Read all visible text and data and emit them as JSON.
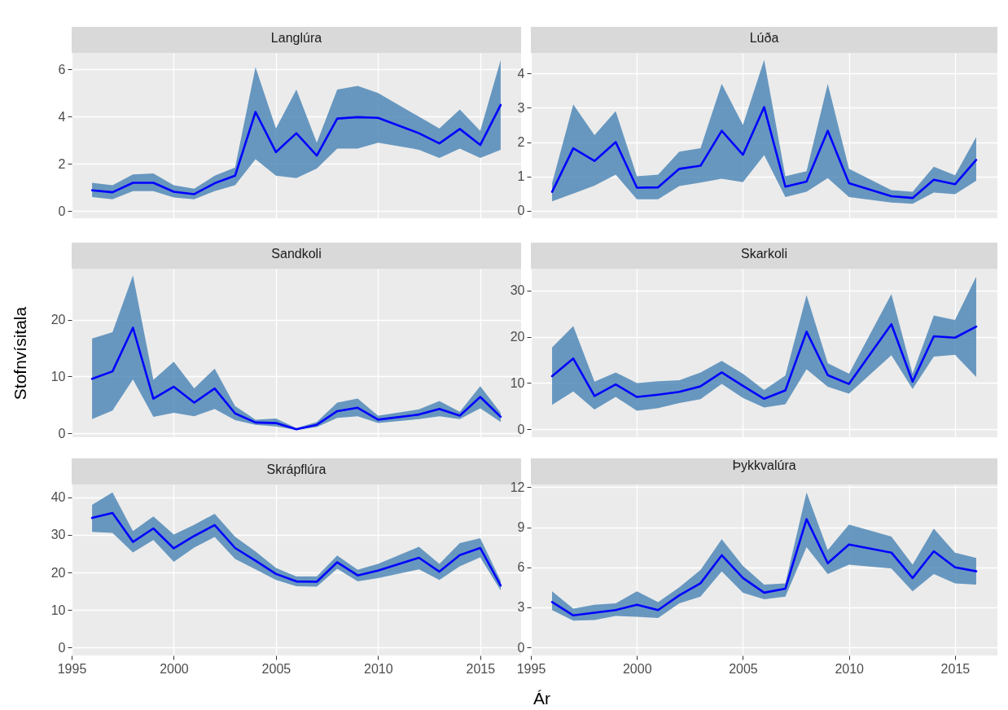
{
  "chart_data": [
    {
      "type": "line",
      "title": "Langlúra",
      "x": [
        1996,
        1997,
        1998,
        1999,
        2000,
        2001,
        2002,
        2003,
        2004,
        2005,
        2006,
        2007,
        2008,
        2009,
        2010,
        2012,
        2013,
        2014,
        2015,
        2016
      ],
      "xlim": [
        1995,
        2017
      ],
      "xticks": [
        1995,
        2000,
        2005,
        2010,
        2015
      ],
      "ylim": [
        -0.3,
        6.7
      ],
      "yticks": [
        0,
        2,
        4,
        6
      ],
      "grid": true,
      "tick_labels": "y",
      "series": [
        {
          "color": "#0000ff",
          "values": [
            0.88,
            0.8,
            1.2,
            1.2,
            0.82,
            0.72,
            1.18,
            1.5,
            4.2,
            2.5,
            3.3,
            2.35,
            3.92,
            3.98,
            3.95,
            3.3,
            2.87,
            3.48,
            2.8,
            4.5
          ],
          "lower": [
            0.6,
            0.5,
            0.85,
            0.85,
            0.58,
            0.5,
            0.85,
            1.1,
            2.2,
            1.5,
            1.4,
            1.8,
            2.65,
            2.65,
            2.9,
            2.6,
            2.25,
            2.65,
            2.25,
            2.6
          ],
          "upper": [
            1.2,
            1.1,
            1.55,
            1.6,
            1.1,
            0.95,
            1.5,
            1.85,
            6.1,
            3.5,
            5.15,
            2.9,
            5.15,
            5.3,
            5.0,
            4.0,
            3.5,
            4.3,
            3.4,
            6.4
          ]
        }
      ]
    },
    {
      "type": "line",
      "title": "Lúða",
      "x": [
        1996,
        1997,
        1998,
        1999,
        2000,
        2001,
        2002,
        2003,
        2004,
        2005,
        2006,
        2007,
        2008,
        2009,
        2010,
        2012,
        2013,
        2014,
        2015,
        2016
      ],
      "xlim": [
        1995,
        2017
      ],
      "xticks": [
        1995,
        2000,
        2005,
        2010,
        2015
      ],
      "ylim": [
        -0.22,
        4.6
      ],
      "yticks": [
        0,
        1,
        2,
        3,
        4
      ],
      "grid": true,
      "tick_labels": "y",
      "series": [
        {
          "color": "#0000ff",
          "values": [
            0.55,
            1.82,
            1.45,
            2.0,
            0.67,
            0.68,
            1.22,
            1.31,
            2.33,
            1.63,
            3.02,
            0.7,
            0.85,
            2.33,
            0.8,
            0.42,
            0.37,
            0.9,
            0.77,
            1.48
          ],
          "lower": [
            0.27,
            0.5,
            0.73,
            1.05,
            0.33,
            0.33,
            0.72,
            0.82,
            0.93,
            0.83,
            1.62,
            0.4,
            0.55,
            0.95,
            0.4,
            0.24,
            0.2,
            0.53,
            0.48,
            0.87
          ],
          "upper": [
            0.8,
            3.1,
            2.2,
            2.9,
            1.0,
            1.05,
            1.72,
            1.82,
            3.7,
            2.5,
            4.4,
            1.0,
            1.15,
            3.7,
            1.22,
            0.6,
            0.55,
            1.28,
            1.03,
            2.15
          ]
        }
      ]
    },
    {
      "type": "line",
      "title": "Sandkoli",
      "ylabel": "Stofnvísitala",
      "x": [
        1996,
        1997,
        1998,
        1999,
        2000,
        2001,
        2002,
        2003,
        2004,
        2005,
        2006,
        2007,
        2008,
        2009,
        2010,
        2012,
        2013,
        2014,
        2015,
        2016
      ],
      "xlim": [
        1995,
        2017
      ],
      "xticks": [
        1995,
        2000,
        2005,
        2010,
        2015
      ],
      "ylim": [
        -0.7,
        29
      ],
      "yticks": [
        0,
        10,
        20
      ],
      "grid": true,
      "tick_labels": "y",
      "series": [
        {
          "color": "#0000ff",
          "values": [
            9.6,
            10.9,
            18.6,
            6.1,
            8.2,
            5.4,
            7.9,
            3.5,
            1.9,
            1.8,
            0.7,
            1.5,
            3.9,
            4.5,
            2.4,
            3.3,
            4.3,
            3.1,
            6.4,
            2.9
          ],
          "lower": [
            2.5,
            4.0,
            9.5,
            2.9,
            3.6,
            3.0,
            4.3,
            2.3,
            1.5,
            1.2,
            0.6,
            1.1,
            2.7,
            3.0,
            1.8,
            2.5,
            3.0,
            2.5,
            4.4,
            2.0
          ],
          "upper": [
            16.7,
            17.8,
            27.8,
            9.4,
            12.6,
            7.9,
            11.4,
            4.8,
            2.4,
            2.6,
            0.9,
            2.0,
            5.4,
            6.1,
            3.1,
            4.2,
            5.7,
            3.8,
            8.3,
            3.6
          ]
        }
      ]
    },
    {
      "type": "line",
      "title": "Skarkoli",
      "x": [
        1996,
        1997,
        1998,
        1999,
        2000,
        2001,
        2002,
        2003,
        2004,
        2005,
        2006,
        2007,
        2008,
        2009,
        2010,
        2012,
        2013,
        2014,
        2015,
        2016
      ],
      "xlim": [
        1995,
        2017
      ],
      "xticks": [
        1995,
        2000,
        2005,
        2010,
        2015
      ],
      "ylim": [
        -1.7,
        34.7
      ],
      "yticks": [
        0,
        10,
        20,
        30
      ],
      "grid": true,
      "tick_labels": "y",
      "series": [
        {
          "color": "#0000ff",
          "values": [
            11.5,
            15.3,
            7.2,
            9.7,
            7.0,
            7.5,
            8.1,
            9.3,
            12.3,
            9.4,
            6.6,
            8.4,
            21.1,
            11.7,
            9.8,
            22.7,
            10.3,
            20.1,
            19.8,
            22.2
          ],
          "lower": [
            5.3,
            8.2,
            4.3,
            7.0,
            4.0,
            4.6,
            5.7,
            6.5,
            9.8,
            6.8,
            4.7,
            5.4,
            13.0,
            9.2,
            7.7,
            16.0,
            8.7,
            15.7,
            16.1,
            11.3
          ],
          "upper": [
            17.7,
            22.3,
            10.3,
            12.3,
            10.0,
            10.4,
            10.6,
            12.3,
            14.8,
            12.0,
            8.5,
            11.6,
            29.0,
            14.3,
            12.0,
            29.2,
            12.0,
            24.6,
            23.6,
            33.0
          ]
        }
      ]
    },
    {
      "type": "line",
      "title": "Skrápflúra",
      "xlabel": "Ár",
      "x": [
        1996,
        1997,
        1998,
        1999,
        2000,
        2001,
        2002,
        2003,
        2004,
        2005,
        2006,
        2007,
        2008,
        2009,
        2010,
        2012,
        2013,
        2014,
        2015,
        2016
      ],
      "xlim": [
        1995,
        2017
      ],
      "xticks": [
        1995,
        2000,
        2005,
        2010,
        2015
      ],
      "ylim": [
        -2.1,
        43.4
      ],
      "yticks": [
        0,
        10,
        20,
        30,
        40
      ],
      "grid": true,
      "series": [
        {
          "color": "#0000ff",
          "values": [
            34.5,
            35.8,
            28.1,
            31.7,
            26.4,
            29.7,
            32.6,
            26.5,
            23.1,
            19.6,
            17.6,
            17.5,
            22.7,
            19.2,
            20.5,
            23.9,
            20.2,
            24.6,
            26.5,
            16.5
          ],
          "lower": [
            30.8,
            30.5,
            25.3,
            28.6,
            22.8,
            26.6,
            29.4,
            23.6,
            20.8,
            18.0,
            16.3,
            16.2,
            21.0,
            17.6,
            18.5,
            20.8,
            18.0,
            21.6,
            24.0,
            15.2
          ],
          "upper": [
            38.0,
            41.3,
            31.0,
            34.9,
            30.1,
            32.7,
            35.6,
            29.5,
            25.6,
            21.2,
            18.9,
            18.9,
            24.5,
            20.7,
            22.3,
            26.8,
            22.3,
            27.8,
            29.1,
            17.8
          ]
        }
      ]
    },
    {
      "type": "line",
      "title": "Þykkvalúra",
      "x": [
        1996,
        1997,
        1998,
        1999,
        2000,
        2001,
        2002,
        2003,
        2004,
        2005,
        2006,
        2007,
        2008,
        2009,
        2010,
        2012,
        2013,
        2014,
        2015,
        2016
      ],
      "xlim": [
        1995,
        2017
      ],
      "xticks": [
        1995,
        2000,
        2005,
        2010,
        2015
      ],
      "ylim": [
        -0.6,
        12.2
      ],
      "yticks": [
        0,
        3,
        6,
        9,
        12
      ],
      "grid": true,
      "series": [
        {
          "color": "#0000ff",
          "values": [
            3.4,
            2.4,
            2.6,
            2.8,
            3.2,
            2.8,
            3.9,
            4.8,
            6.9,
            5.2,
            4.1,
            4.4,
            9.6,
            6.3,
            7.7,
            7.1,
            5.2,
            7.2,
            6.0,
            5.7
          ],
          "lower": [
            2.8,
            2.0,
            2.05,
            2.35,
            2.3,
            2.2,
            3.3,
            3.8,
            5.7,
            4.1,
            3.6,
            3.8,
            7.5,
            5.5,
            6.2,
            5.9,
            4.2,
            5.5,
            4.8,
            4.7
          ],
          "upper": [
            4.2,
            2.9,
            3.2,
            3.3,
            4.2,
            3.4,
            4.5,
            5.8,
            8.1,
            6.1,
            4.7,
            4.8,
            11.6,
            7.3,
            9.2,
            8.3,
            6.2,
            8.9,
            7.1,
            6.7
          ]
        }
      ]
    }
  ]
}
